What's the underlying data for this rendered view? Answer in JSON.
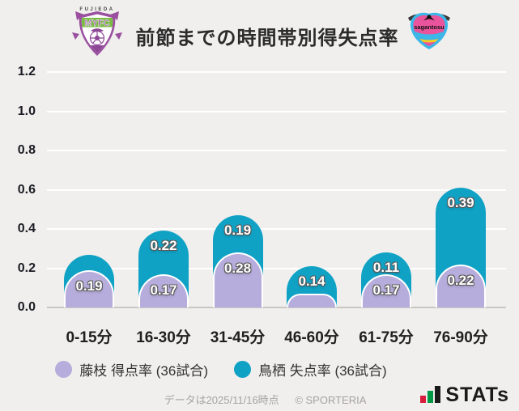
{
  "header": {
    "title": "前節までの時間帯別得失点率",
    "home_crest": {
      "name": "fujieda-myfc",
      "top_text": "FUJIEDA",
      "main_text": "MYFC"
    },
    "away_crest": {
      "name": "sagan-tosu",
      "main_text": "sagantosu"
    }
  },
  "chart_data": {
    "type": "bar",
    "stacked": true,
    "title": "前節までの時間帯別得失点率",
    "categories": [
      "0-15分",
      "16-30分",
      "31-45分",
      "46-60分",
      "61-75分",
      "76-90分"
    ],
    "series": [
      {
        "name": "藤枝 得点率 (36試合)",
        "color": "#b7addc",
        "values": [
          0.19,
          0.17,
          0.28,
          0.07,
          0.17,
          0.22
        ],
        "display_labels": [
          "0.19",
          "0.17",
          "0.28",
          "",
          "0.17",
          "0.22"
        ]
      },
      {
        "name": "鳥栖 失点率 (36試合)",
        "color": "#10a2c5",
        "values": [
          0.08,
          0.22,
          0.19,
          0.14,
          0.11,
          0.39
        ],
        "display_labels": [
          "",
          "0.22",
          "0.19",
          "0.14",
          "0.11",
          "0.39"
        ]
      }
    ],
    "ylim": [
      0,
      1.2
    ],
    "yticks": [
      0,
      0.2,
      0.4,
      0.6,
      0.8,
      1.0,
      1.2
    ],
    "grid": true,
    "legend_position": "bottom"
  },
  "legend": {
    "items": [
      {
        "label": "藤枝 得点率 (36試合)",
        "color": "#b7addc"
      },
      {
        "label": "鳥栖 失点率 (36試合)",
        "color": "#10a2c5"
      }
    ]
  },
  "footer": {
    "data_note": "データは2025/11/16時点",
    "copyright": "© SPORTERIA",
    "stats_logo_text": "STATs"
  }
}
